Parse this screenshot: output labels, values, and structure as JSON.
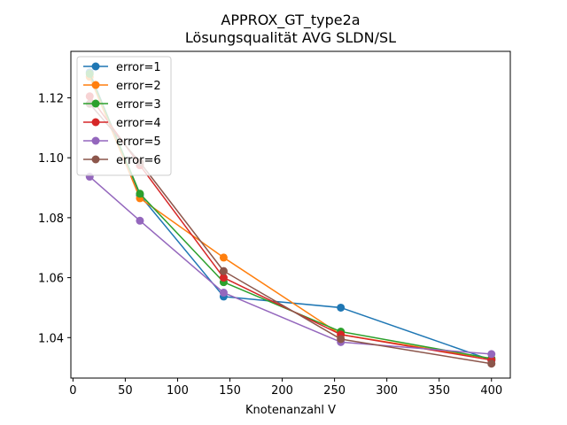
{
  "chart_data": {
    "type": "line",
    "title": "APPROX_GT_type2a",
    "subtitle": "Lösungsqualität AVG SLDN/SL",
    "xlabel": "Knotenanzahl V",
    "ylabel": "",
    "xlim": [
      -2,
      418
    ],
    "ylim": [
      1.0265,
      1.1355
    ],
    "xticks": [
      0,
      50,
      100,
      150,
      200,
      250,
      300,
      350,
      400
    ],
    "yticks": [
      1.04,
      1.06,
      1.08,
      1.1,
      1.12
    ],
    "ytick_labels": [
      "1.04",
      "1.06",
      "1.08",
      "1.10",
      "1.12"
    ],
    "grid": false,
    "legend_position": "upper-left",
    "x": [
      16,
      64,
      144,
      256,
      400
    ],
    "series": [
      {
        "name": "error=1",
        "color": "#1f77b4",
        "values": [
          1.1285,
          1.0875,
          1.0537,
          1.05,
          1.0325
        ]
      },
      {
        "name": "error=2",
        "color": "#ff7f0e",
        "values": [
          1.127,
          1.0865,
          1.0667,
          1.041,
          1.033
        ]
      },
      {
        "name": "error=3",
        "color": "#2ca02c",
        "values": [
          1.128,
          1.088,
          1.0585,
          1.042,
          1.033
        ]
      },
      {
        "name": "error=4",
        "color": "#d62728",
        "values": [
          1.1205,
          1.0975,
          1.06,
          1.041,
          1.0325
        ]
      },
      {
        "name": "error=5",
        "color": "#9467bd",
        "values": [
          1.0937,
          1.079,
          1.055,
          1.0385,
          1.0345
        ]
      },
      {
        "name": "error=6",
        "color": "#8c564b",
        "values": [
          1.118,
          1.0985,
          1.0622,
          1.0395,
          1.0313
        ]
      }
    ]
  }
}
